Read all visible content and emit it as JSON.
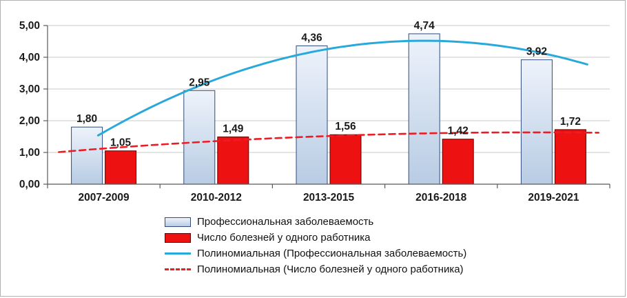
{
  "chart_data": {
    "type": "bar",
    "title": "",
    "categories": [
      "2007-2009",
      "2010-2012",
      "2013-2015",
      "2016-2018",
      "2019-2021"
    ],
    "series": [
      {
        "name": "Профессиональная заболеваемость",
        "values": [
          1.8,
          2.95,
          4.36,
          4.74,
          3.92
        ],
        "labels": [
          "1,80",
          "2,95",
          "4,36",
          "4,74",
          "3,92"
        ],
        "fill": "#c9d8ef",
        "fill_top": "#eef3fb",
        "fill_bottom": "#b8cce4",
        "stroke": "#2e4a7a"
      },
      {
        "name": "Число болезней у одного работника",
        "values": [
          1.05,
          1.49,
          1.56,
          1.42,
          1.72
        ],
        "labels": [
          "1,05",
          "1,49",
          "1,56",
          "1,42",
          "1,72"
        ],
        "fill": "#ee1111",
        "stroke": "#5a0000"
      }
    ],
    "trendlines": [
      {
        "name": "Полиномиальная (Профессиональная заболеваемость)",
        "series": 0,
        "style": "solid",
        "color": "#29a8dc"
      },
      {
        "name": "Полиномиальная (Число болезней у одного работника)",
        "series": 1,
        "style": "dashed",
        "color": "#ed1c24"
      }
    ],
    "ylim": [
      0,
      5
    ],
    "y_ticks": [
      {
        "value": 0,
        "label": "0,00"
      },
      {
        "value": 1,
        "label": "1,00"
      },
      {
        "value": 2,
        "label": "2,00"
      },
      {
        "value": 3,
        "label": "3,00"
      },
      {
        "value": 4,
        "label": "4,00"
      },
      {
        "value": 5,
        "label": "5,00"
      }
    ],
    "grid": true,
    "legend_position": "bottom",
    "colors": {
      "gridline": "#c9c9c9",
      "axis": "#595959",
      "text": "#1a1a1a"
    }
  }
}
